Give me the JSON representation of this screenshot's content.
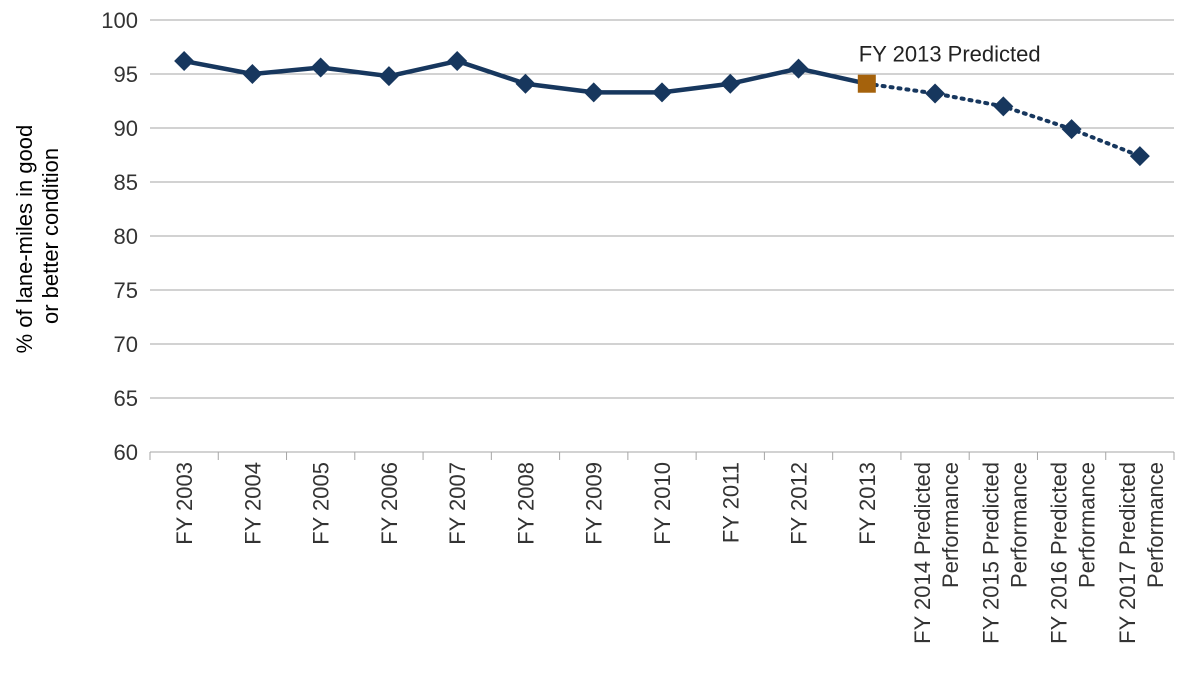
{
  "chart_data": {
    "type": "line",
    "ylabel_lines": [
      "% of lane-miles in good",
      "or better condition"
    ],
    "ylim": [
      60,
      100
    ],
    "yticks": [
      60,
      65,
      70,
      75,
      80,
      85,
      90,
      95,
      100
    ],
    "grid": true,
    "categories": [
      [
        "FY 2003"
      ],
      [
        "FY 2004"
      ],
      [
        "FY 2005"
      ],
      [
        "FY 2006"
      ],
      [
        "FY 2007"
      ],
      [
        "FY 2008"
      ],
      [
        "FY 2009"
      ],
      [
        "FY 2010"
      ],
      [
        "FY 2011"
      ],
      [
        "FY 2012"
      ],
      [
        "FY 2013"
      ],
      [
        "FY 2014 Predicted",
        "Performance"
      ],
      [
        "FY 2015 Predicted",
        "Performance"
      ],
      [
        "FY 2016 Predicted",
        "Performance"
      ],
      [
        "FY 2017 Predicted",
        "Performance"
      ]
    ],
    "series": [
      {
        "values": [
          96.2,
          95.0,
          95.6,
          94.8,
          96.2,
          94.1,
          93.3,
          93.3,
          94.1,
          95.5,
          94.1,
          null,
          null,
          null,
          null
        ],
        "color": "#17375e",
        "line_style": "solid",
        "marker": "diamond"
      },
      {
        "values": [
          null,
          null,
          null,
          null,
          null,
          null,
          null,
          null,
          null,
          null,
          94.1,
          93.2,
          92.0,
          89.9,
          87.4
        ],
        "color": "#17375e",
        "line_style": "dotted",
        "marker": "diamond"
      }
    ],
    "highlight": {
      "index": 10,
      "value": 94.1,
      "color": "#a5620c",
      "marker": "square"
    },
    "annotations": [
      {
        "text": "FY 2013 Predicted",
        "index": 10,
        "value": 94.1
      }
    ]
  }
}
